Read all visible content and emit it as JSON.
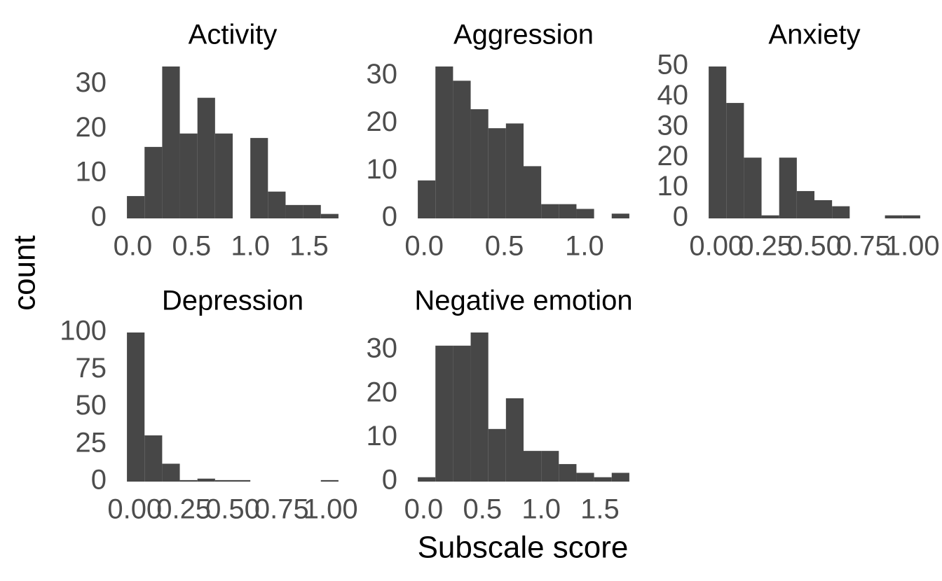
{
  "xlabel": "Subscale score",
  "ylabel": "count",
  "chart_data": [
    {
      "type": "histogram",
      "title": "Activity",
      "color": "#474747",
      "bins": [
        -0.05,
        0.1,
        0.25,
        0.4,
        0.55,
        0.7,
        0.85,
        1.0,
        1.15,
        1.3,
        1.45,
        1.6,
        1.75
      ],
      "values": [
        5,
        16,
        34,
        19,
        27,
        19,
        0,
        18,
        6,
        3,
        3,
        1
      ],
      "xlim": [
        -0.14,
        1.84
      ],
      "ylim": [
        0,
        34
      ],
      "xticks": [
        {
          "value": 0,
          "label": "0.0"
        },
        {
          "value": 0.5,
          "label": "0.5"
        },
        {
          "value": 1,
          "label": "1.0"
        },
        {
          "value": 1.5,
          "label": "1.5"
        }
      ],
      "yticks": [
        0,
        10,
        20,
        30
      ]
    },
    {
      "type": "histogram",
      "title": "Aggression",
      "color": "#474747",
      "bins": [
        -0.04,
        0.07,
        0.18,
        0.29,
        0.4,
        0.51,
        0.62,
        0.73,
        0.84,
        0.95,
        1.06,
        1.17,
        1.28
      ],
      "values": [
        8,
        32,
        29,
        23,
        19,
        20,
        11,
        3,
        3,
        2,
        0,
        1
      ],
      "xlim": [
        -0.106,
        1.346
      ],
      "ylim": [
        0,
        32
      ],
      "xticks": [
        {
          "value": 0,
          "label": "0.0"
        },
        {
          "value": 0.5,
          "label": "0.5"
        },
        {
          "value": 1,
          "label": "1.0"
        }
      ],
      "yticks": [
        0,
        10,
        20,
        30
      ]
    },
    {
      "type": "histogram",
      "title": "Anxiety",
      "color": "#474747",
      "bins": [
        -0.04,
        0.05,
        0.14,
        0.23,
        0.32,
        0.41,
        0.5,
        0.59,
        0.68,
        0.77,
        0.86,
        0.95,
        1.04
      ],
      "values": [
        50,
        38,
        20,
        1,
        20,
        9,
        6,
        4,
        0,
        0,
        1,
        1
      ],
      "xlim": [
        -0.094,
        1.094
      ],
      "ylim": [
        0,
        50
      ],
      "xticks": [
        {
          "value": 0,
          "label": "0.00"
        },
        {
          "value": 0.25,
          "label": "0.25"
        },
        {
          "value": 0.5,
          "label": "0.50"
        },
        {
          "value": 0.75,
          "label": "0.75"
        },
        {
          "value": 1,
          "label": "1.00"
        }
      ],
      "yticks": [
        0,
        10,
        20,
        30,
        40,
        50
      ]
    },
    {
      "type": "histogram",
      "title": "Depression",
      "color": "#474747",
      "bins": [
        -0.04,
        0.05,
        0.14,
        0.23,
        0.32,
        0.41,
        0.5,
        0.59,
        0.68,
        0.77,
        0.86,
        0.95,
        1.04
      ],
      "values": [
        100,
        31,
        12,
        1,
        2,
        1,
        1,
        0,
        0,
        0,
        0,
        1
      ],
      "xlim": [
        -0.094,
        1.094
      ],
      "ylim": [
        0,
        100
      ],
      "xticks": [
        {
          "value": 0,
          "label": "0.00"
        },
        {
          "value": 0.25,
          "label": "0.25"
        },
        {
          "value": 0.5,
          "label": "0.50"
        },
        {
          "value": 0.75,
          "label": "0.75"
        },
        {
          "value": 1,
          "label": "1.00"
        }
      ],
      "yticks": [
        0,
        25,
        50,
        75,
        100
      ]
    },
    {
      "type": "histogram",
      "title": "Negative emotion",
      "color": "#474747",
      "bins": [
        -0.05,
        0.1,
        0.25,
        0.4,
        0.55,
        0.7,
        0.85,
        1.0,
        1.15,
        1.3,
        1.45,
        1.6,
        1.75
      ],
      "values": [
        1,
        31,
        31,
        34,
        12,
        19,
        7,
        7,
        4,
        2,
        1,
        2
      ],
      "xlim": [
        -0.14,
        1.84
      ],
      "ylim": [
        0,
        34
      ],
      "xticks": [
        {
          "value": 0,
          "label": "0.0"
        },
        {
          "value": 0.5,
          "label": "0.5"
        },
        {
          "value": 1,
          "label": "1.0"
        },
        {
          "value": 1.5,
          "label": "1.5"
        }
      ],
      "yticks": [
        0,
        10,
        20,
        30
      ]
    }
  ]
}
